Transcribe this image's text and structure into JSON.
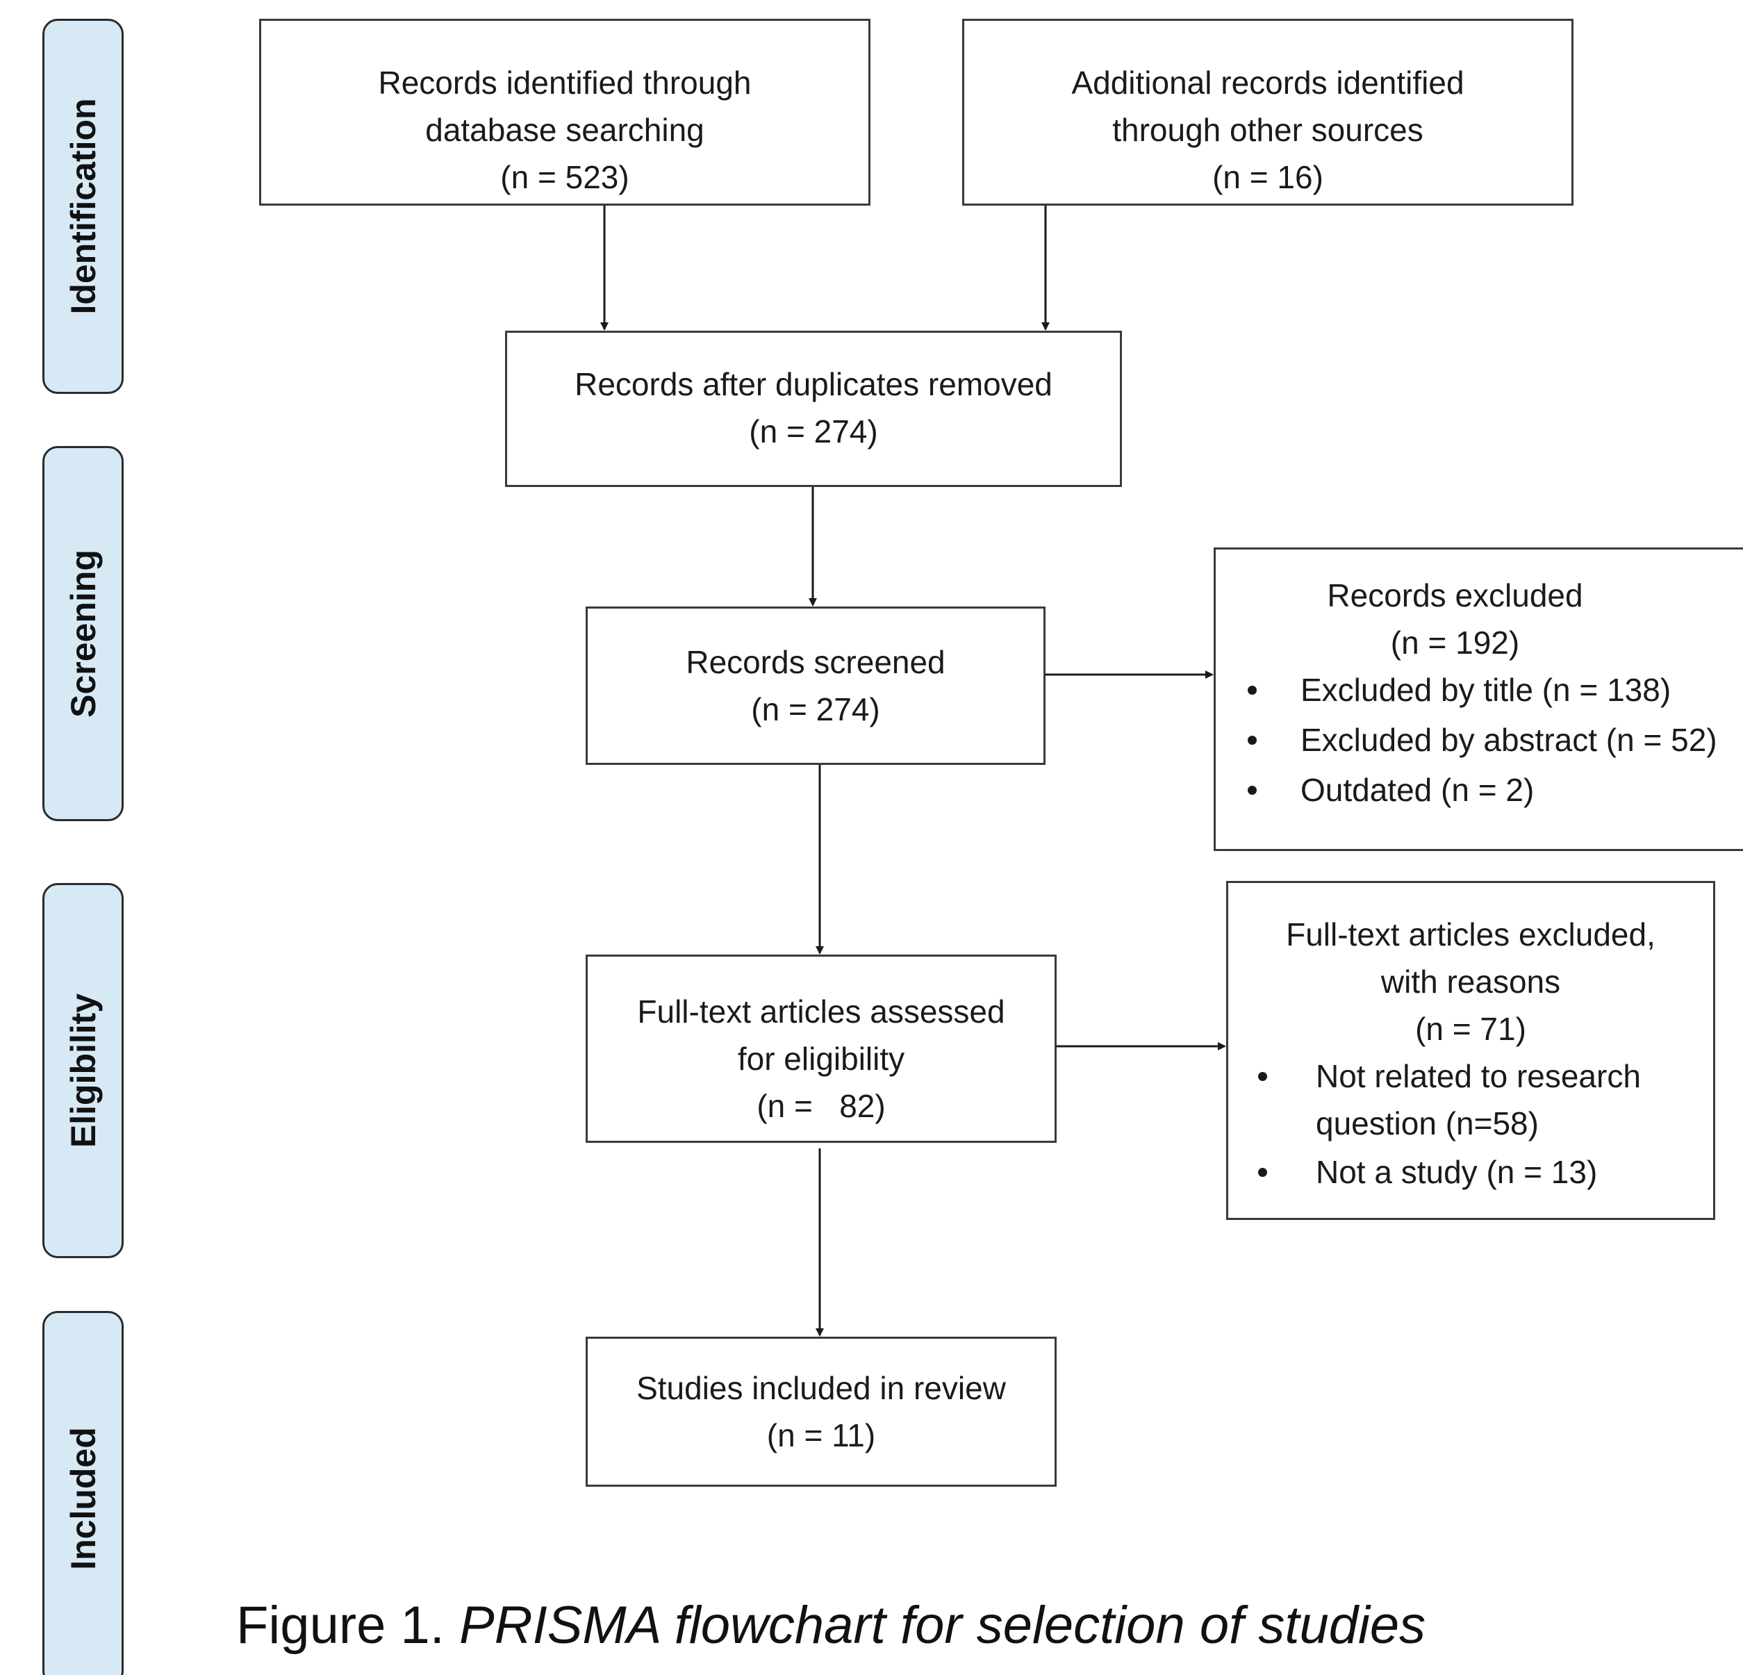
{
  "phases": {
    "identification": "Identification",
    "screening": "Screening",
    "eligibility": "Eligibility",
    "included": "Included"
  },
  "boxes": {
    "database": {
      "line1": "Records identified through",
      "line2": "database searching",
      "line3": "(n = 523)"
    },
    "other": {
      "line1": "Additional records identified",
      "line2": "through other sources",
      "line3": "(n = 16)"
    },
    "duplicates": {
      "line1": "Records after duplicates removed",
      "line2": "(n = 274)"
    },
    "screened": {
      "line1": "Records screened",
      "line2": "(n = 274)"
    },
    "excluded": {
      "line1": "Records excluded",
      "line2": "(n = 192)",
      "items": [
        "Excluded by title (n = 138)",
        "Excluded by abstract (n = 52)",
        "Outdated (n = 2)"
      ]
    },
    "fulltext": {
      "line1": "Full-text articles assessed",
      "line2": "for eligibility",
      "line3": "(n =   82)"
    },
    "fulltext_excluded": {
      "line1": "Full-text articles excluded,",
      "line2": "with reasons",
      "line3": "(n = 71)",
      "items": [
        "Not related to research",
        "question (n=58)",
        "Not a study (n = 13)"
      ]
    },
    "included": {
      "line1": "Studies included in review",
      "line2": "(n = 11)"
    }
  },
  "caption": {
    "prefix": "Figure 1. ",
    "text": "PRISMA flowchart for selection of studies"
  },
  "colors": {
    "phase_fill": "#d7e9f5",
    "stroke": "#2b2b2b"
  }
}
